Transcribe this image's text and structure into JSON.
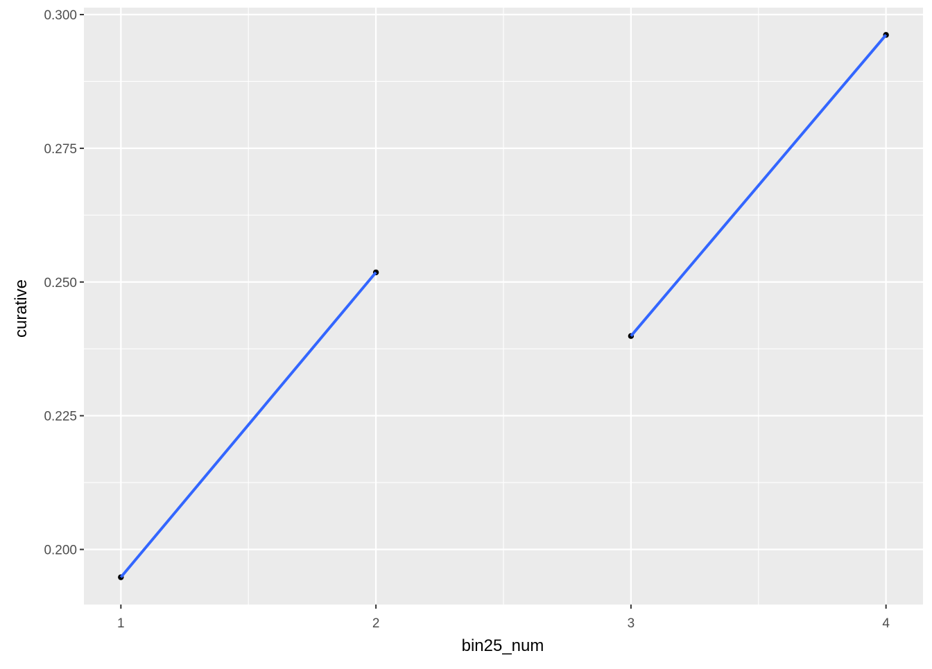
{
  "chart_data": {
    "type": "line",
    "title": "",
    "xlabel": "bin25_num",
    "ylabel": "curative",
    "xlim": [
      0.855,
      4.145
    ],
    "ylim": [
      0.1897,
      0.3013
    ],
    "x_ticks": [
      1,
      2,
      3,
      4
    ],
    "x_tick_labels": [
      "1",
      "2",
      "3",
      "4"
    ],
    "y_ticks": [
      0.2,
      0.225,
      0.25,
      0.275,
      0.3
    ],
    "y_tick_labels": [
      "0.200",
      "0.225",
      "0.250",
      "0.275",
      "0.300"
    ],
    "grid": true,
    "points": [
      {
        "x": 1,
        "y": 0.1948
      },
      {
        "x": 2,
        "y": 0.2518
      },
      {
        "x": 3,
        "y": 0.2399
      },
      {
        "x": 4,
        "y": 0.2962
      }
    ],
    "line_segments": [
      [
        {
          "x": 1,
          "y": 0.1948
        },
        {
          "x": 2,
          "y": 0.2518
        }
      ],
      [
        {
          "x": 3,
          "y": 0.2399
        },
        {
          "x": 4,
          "y": 0.2962
        }
      ]
    ],
    "colors": {
      "panel_background": "#EBEBEB",
      "grid": "#FFFFFF",
      "line": "#3366FF",
      "point": "#000000",
      "tick_label": "#4D4D4D",
      "axis_title": "#000000"
    }
  }
}
